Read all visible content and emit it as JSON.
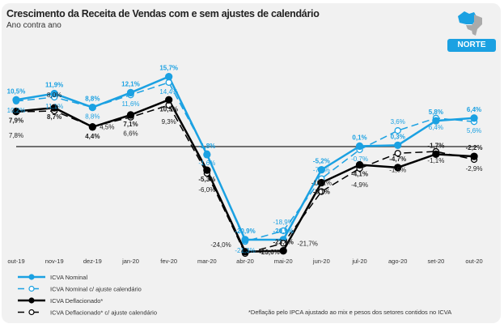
{
  "title": "Crescimento da Receita de Vendas com e sem ajustes de calendário",
  "subtitle": "Ano contra ano",
  "region": "NORTE",
  "footnote": "*Deflação pelo IPCA ajustado ao mix e pesos dos setores contidos no ICVA",
  "chart_data": {
    "type": "line",
    "title": "Crescimento da Receita de Vendas com e sem ajustes de calendário",
    "categories": [
      "out-19",
      "nov-19",
      "dez-19",
      "jan-20",
      "fev-20",
      "mar-20",
      "abr-20",
      "mai-20",
      "jun-20",
      "jul-20",
      "ago-20",
      "set-20",
      "out-20"
    ],
    "ylim": [
      -26,
      18
    ],
    "series": [
      {
        "name": "ICVA Nominal",
        "color": "#1ba1e2",
        "dashed": false,
        "filled": true,
        "labels_bold": true,
        "values": [
          10.5,
          11.9,
          8.8,
          12.1,
          15.7,
          -1.8,
          -20.9,
          -20.9,
          -5.2,
          0.1,
          0.3,
          5.8,
          6.4
        ]
      },
      {
        "name": "ICVA Nominal c/ ajuste calendário",
        "color": "#1ba1e2",
        "dashed": true,
        "filled": false,
        "labels_bold": false,
        "values": [
          10.2,
          11.1,
          8.8,
          11.6,
          14.4,
          -1.6,
          -21.3,
          -18.9,
          -7.2,
          -0.7,
          3.6,
          6.4,
          5.6
        ]
      },
      {
        "name": "ICVA Deflacionado*",
        "color": "#000000",
        "dashed": false,
        "filled": true,
        "labels_bold": true,
        "values": [
          7.9,
          8.7,
          4.4,
          7.1,
          10.5,
          -5.3,
          -23.6,
          -23.4,
          -8.1,
          -4.1,
          -4.7,
          -1.7,
          -2.2
        ]
      },
      {
        "name": "ICVA Deflacionado* c/ ajuste calendário",
        "color": "#000000",
        "dashed": true,
        "filled": false,
        "labels_bold": false,
        "values": [
          7.8,
          8.0,
          4.5,
          6.6,
          9.3,
          -6.0,
          -24.0,
          -21.7,
          -10.1,
          -4.9,
          -1.5,
          -1.1,
          -2.9
        ]
      }
    ],
    "legend": "bottom-left",
    "reference_line": 0
  }
}
